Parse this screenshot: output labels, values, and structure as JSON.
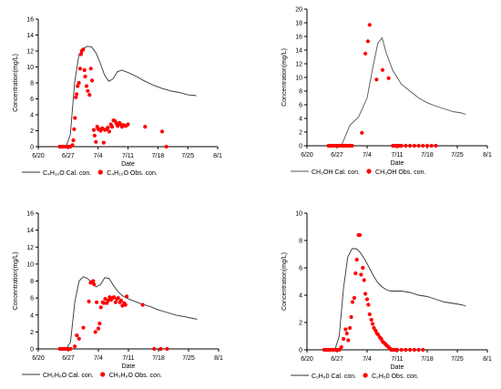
{
  "chart_data": [
    {
      "type": "line",
      "xlabel": "Date",
      "ylabel": "Concentration(mg/L)",
      "x_tick_labels": [
        "6/20",
        "6/27",
        "7/4",
        "7/11",
        "7/18",
        "7/25",
        "8/1"
      ],
      "xlim": [
        0,
        42
      ],
      "ylim": [
        0,
        16
      ],
      "y_ticks": [
        0,
        2,
        4,
        6,
        8,
        10,
        12,
        14,
        16
      ],
      "grid": false,
      "legend_position": "bottom",
      "series": [
        {
          "name": "C₄H₁₀O Cal. con.",
          "kind": "line",
          "color": "#333333",
          "x": [
            5,
            6.5,
            7.5,
            8.5,
            9.5,
            10.5,
            11.5,
            12.5,
            13.5,
            14.5,
            15.5,
            16.5,
            17.5,
            18.5,
            19.5,
            21,
            23,
            25,
            27,
            29,
            31,
            33,
            35,
            37
          ],
          "y": [
            0,
            0,
            1.5,
            8,
            11.5,
            12.3,
            12.6,
            12.5,
            11.8,
            10.5,
            9,
            8.2,
            8.5,
            9.4,
            9.6,
            9.3,
            8.8,
            8.2,
            7.7,
            7.3,
            7,
            6.8,
            6.5,
            6.4
          ]
        },
        {
          "name": "C₄H₁₀O Obs. con.",
          "kind": "scatter",
          "color": "#ff0000",
          "x": [
            5,
            5.5,
            6,
            6.5,
            7,
            7.5,
            8,
            8.2,
            8.4,
            8.6,
            8.8,
            9,
            9.2,
            9.5,
            9.8,
            10,
            10.2,
            10.5,
            10.8,
            11,
            11.3,
            11.6,
            12,
            12.3,
            12.6,
            13,
            13.2,
            13.5,
            13.8,
            14,
            14.3,
            14.6,
            15,
            15.3,
            15.6,
            16,
            16.3,
            16.6,
            17,
            17.3,
            17.6,
            18,
            18.3,
            18.6,
            19,
            19.3,
            19.6,
            20,
            20.5,
            21,
            25,
            29,
            30
          ],
          "y": [
            0,
            0,
            0,
            0,
            0,
            0,
            0.2,
            0.8,
            2.2,
            3.6,
            6.2,
            6.6,
            7.6,
            8,
            9.8,
            11.6,
            12,
            12.2,
            9.6,
            8.8,
            7.6,
            7,
            6.5,
            9.8,
            8.3,
            2.1,
            1.4,
            0.6,
            2.5,
            2.2,
            2.2,
            2,
            2.3,
            0.5,
            2.1,
            2.2,
            2.4,
            1.9,
            2.8,
            2.5,
            3.3,
            3.2,
            2.9,
            2.6,
            3,
            2.8,
            2.5,
            2.7,
            2.6,
            2.8,
            2.5,
            1.9,
            0
          ]
        }
      ]
    },
    {
      "type": "line",
      "xlabel": "Date",
      "ylabel": "Concentration(mg/L)",
      "x_tick_labels": [
        "6/20",
        "6/27",
        "7/4",
        "7/11",
        "7/18",
        "7/25",
        "8/1"
      ],
      "xlim": [
        0,
        42
      ],
      "ylim": [
        0,
        20
      ],
      "y_ticks": [
        0,
        2,
        4,
        6,
        8,
        10,
        12,
        14,
        16,
        18,
        20
      ],
      "grid": false,
      "legend_position": "bottom",
      "series": [
        {
          "name": "CH₃OH Cal. con.",
          "kind": "line",
          "color": "#555555",
          "x": [
            5,
            7,
            8,
            10,
            12,
            14,
            15.5,
            16.5,
            17.5,
            18.5,
            20,
            22,
            24,
            26,
            28,
            30,
            32,
            34,
            36,
            37
          ],
          "y": [
            0,
            0,
            0,
            3,
            4.2,
            7,
            12,
            15,
            15.8,
            13.5,
            11,
            9,
            8,
            7,
            6.3,
            5.8,
            5.4,
            5,
            4.8,
            4.6
          ]
        },
        {
          "name": "CH₃OH Obs. con.",
          "kind": "scatter",
          "color": "#ff0000",
          "x": [
            5,
            5.5,
            6,
            6.5,
            7,
            7.5,
            8,
            8.5,
            9,
            9.5,
            10,
            10.5,
            12.8,
            13.6,
            14.2,
            14.6,
            16.2,
            17.6,
            19,
            20,
            20.5,
            21,
            21.5,
            22,
            23,
            24,
            25,
            26,
            27,
            28,
            29,
            30
          ],
          "y": [
            0,
            0,
            0,
            0,
            0,
            0,
            0,
            0,
            0,
            0,
            0,
            0,
            1.9,
            13.5,
            15.3,
            17.7,
            9.7,
            11.1,
            9.9,
            0,
            0,
            0,
            0,
            0,
            0,
            0,
            0,
            0,
            0,
            0,
            0,
            0
          ]
        }
      ]
    },
    {
      "type": "line",
      "xlabel": "Date",
      "ylabel": "Concentration(mg/L)",
      "x_tick_labels": [
        "6/20",
        "6/27",
        "7/4",
        "7/11",
        "7/18",
        "7/25",
        "8/1"
      ],
      "xlim": [
        0,
        42
      ],
      "ylim": [
        0,
        16
      ],
      "y_ticks": [
        0,
        2,
        4,
        6,
        8,
        10,
        12,
        14,
        16
      ],
      "grid": false,
      "legend_position": "bottom",
      "series": [
        {
          "name": "CH₂H₆O Cal. con.",
          "kind": "line",
          "color": "#333333",
          "x": [
            5,
            6.5,
            7.5,
            8.5,
            9.5,
            10.5,
            11.5,
            12.5,
            13.5,
            14.5,
            15.5,
            16.5,
            17.5,
            18.5,
            19.5,
            20.5,
            22,
            24,
            26,
            28,
            30,
            32,
            34,
            36,
            37
          ],
          "y": [
            0,
            0,
            0.8,
            5.5,
            8,
            8.5,
            8.3,
            7.8,
            7.3,
            7.6,
            8.4,
            8.3,
            7.5,
            6.8,
            6.3,
            6,
            5.7,
            5.3,
            5,
            4.6,
            4.3,
            4,
            3.8,
            3.6,
            3.5
          ]
        },
        {
          "name": "CH₂H₆O Obs. con.",
          "kind": "scatter",
          "color": "#ff0000",
          "x": [
            5,
            5.5,
            6,
            6.5,
            7,
            7.5,
            8.5,
            9,
            9.5,
            10.5,
            11.8,
            12.2,
            12.5,
            12.8,
            13,
            13.3,
            13.6,
            14,
            14.3,
            14.6,
            15,
            15.3,
            15.6,
            16,
            16.3,
            16.6,
            17,
            17.3,
            17.6,
            18,
            18.3,
            18.6,
            19,
            19.3,
            19.6,
            20,
            20.3,
            20.6,
            24.3,
            27,
            28.5,
            30
          ],
          "y": [
            0,
            0,
            0,
            0,
            0,
            0,
            0.3,
            1.6,
            1.2,
            2.5,
            5.6,
            7.8,
            7.9,
            8,
            7.6,
            2,
            5.5,
            2.4,
            3,
            4.9,
            5.5,
            5.4,
            5.9,
            5.4,
            5.7,
            6.1,
            5.8,
            6,
            6.1,
            5.5,
            5.9,
            6,
            5.5,
            5.7,
            5.1,
            5.4,
            5.2,
            6.2,
            5.2,
            0,
            0,
            0
          ]
        }
      ]
    },
    {
      "type": "line",
      "xlabel": "Date",
      "ylabel": "Concentration(mg/L)",
      "x_tick_labels": [
        "6/20",
        "6/27",
        "7/4",
        "7/11",
        "7/18",
        "7/25",
        "8/1"
      ],
      "xlim": [
        0,
        42
      ],
      "ylim": [
        0,
        10
      ],
      "y_ticks": [
        0,
        2,
        4,
        6,
        8,
        10
      ],
      "grid": false,
      "legend_position": "bottom",
      "series": [
        {
          "name": "C₂H₆0 Cal. con.",
          "kind": "line",
          "color": "#333333",
          "x": [
            5,
            6.5,
            7.5,
            8.5,
            9.5,
            10.5,
            11.5,
            12.5,
            13.5,
            14.5,
            15.5,
            16.5,
            17.5,
            18.5,
            19.5,
            20.5,
            22,
            24,
            26,
            28,
            30,
            32,
            34,
            36,
            37
          ],
          "y": [
            0,
            0,
            1,
            4.5,
            6.8,
            7.4,
            7.4,
            7.1,
            6.6,
            6,
            5.4,
            4.9,
            4.6,
            4.4,
            4.3,
            4.3,
            4.3,
            4.2,
            4,
            3.9,
            3.7,
            3.5,
            3.4,
            3.3,
            3.2
          ]
        },
        {
          "name": "C₂H₆0 Obs. con.",
          "kind": "scatter",
          "color": "#ff0000",
          "x": [
            4,
            4.5,
            5,
            5.5,
            6,
            6.5,
            7,
            7.5,
            8,
            8.5,
            9,
            9.3,
            9.6,
            10,
            10.3,
            10.6,
            11,
            11.3,
            11.6,
            12,
            12.3,
            12.6,
            13,
            13.3,
            13.6,
            14,
            14.3,
            14.6,
            15,
            15.3,
            15.6,
            16,
            16.3,
            16.6,
            17,
            17.3,
            17.6,
            18,
            18.3,
            18.6,
            19,
            19.3,
            19.6,
            20,
            20.5,
            21,
            22,
            23,
            24,
            25,
            26,
            27
          ],
          "y": [
            0,
            0,
            0,
            0,
            0,
            0,
            0,
            0,
            0.2,
            0.8,
            1.5,
            1.2,
            0.7,
            1.6,
            2.4,
            3.5,
            3.8,
            5.6,
            6.6,
            8.4,
            8.4,
            5.5,
            6,
            5.1,
            4.1,
            3.7,
            3.3,
            2.6,
            2.2,
            1.9,
            1.6,
            1.4,
            1.2,
            1.1,
            0.9,
            0.8,
            0.6,
            0.5,
            0.4,
            0.3,
            0.2,
            0.1,
            0,
            0,
            0,
            0,
            0,
            0,
            0,
            0,
            0,
            0
          ]
        }
      ]
    }
  ]
}
